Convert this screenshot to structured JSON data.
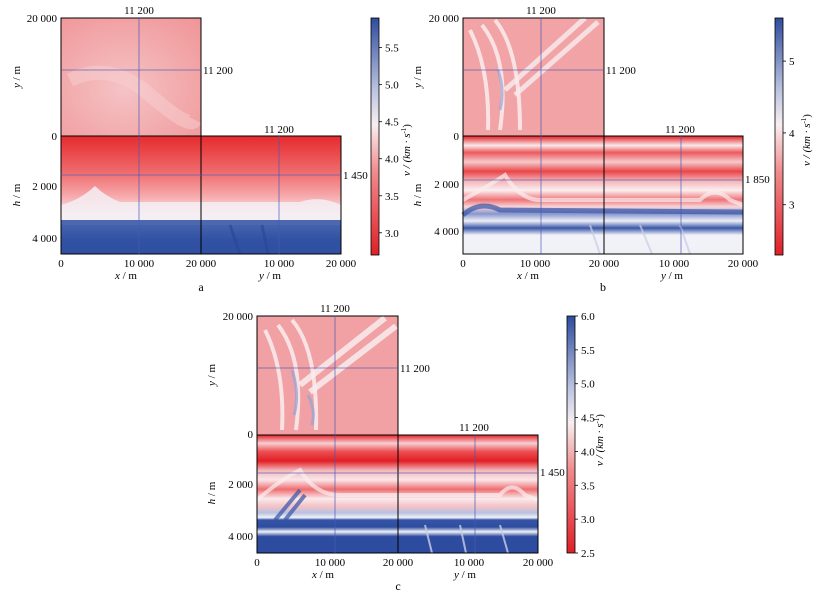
{
  "chart_data": [
    {
      "type": "heatmap",
      "panel": "a",
      "slice_labels": {
        "top_x": "11 200",
        "top_y": "11 200",
        "bottom_y": "11 200",
        "depth": "1 450"
      },
      "x_ticks": [
        "0",
        "10 000",
        "20 000"
      ],
      "y_ticks": [
        "20 000",
        "0"
      ],
      "h_ticks": [
        "2 000",
        "4 000"
      ],
      "y2_ticks": [
        "10 000",
        "20 000"
      ],
      "colorbar_ticks": [
        "5.5",
        "5.0",
        "4.5",
        "4.0",
        "3.5",
        "3.0"
      ],
      "colorbar_range": [
        2.7,
        5.9
      ],
      "interface_depth_m": 2700
    },
    {
      "type": "heatmap",
      "panel": "b",
      "slice_labels": {
        "top_x": "11 200",
        "top_y": "11 200",
        "bottom_y": "11 200",
        "depth": "1 850"
      },
      "x_ticks": [
        "0",
        "10 000",
        "20 000"
      ],
      "y_ticks": [
        "20 000",
        "0"
      ],
      "h_ticks": [
        "2 000",
        "4 000"
      ],
      "y2_ticks": [
        "10 000",
        "20 000"
      ],
      "colorbar_ticks": [
        "5",
        "4",
        "3"
      ],
      "colorbar_range": [
        2.3,
        5.6
      ]
    },
    {
      "type": "heatmap",
      "panel": "c",
      "slice_labels": {
        "top_x": "11 200",
        "top_y": "11 200",
        "bottom_y": "11 200",
        "depth": "1 450"
      },
      "x_ticks": [
        "0",
        "10 000",
        "20 000"
      ],
      "y_ticks": [
        "20 000",
        "0"
      ],
      "h_ticks": [
        "2 000",
        "4 000"
      ],
      "y2_ticks": [
        "10 000",
        "20 000"
      ],
      "colorbar_ticks": [
        "6.0",
        "5.5",
        "5.0",
        "4.5",
        "4.0",
        "3.5",
        "3.0",
        "2.5"
      ],
      "colorbar_range": [
        2.5,
        6.0
      ]
    }
  ],
  "labels": {
    "x_label": "x",
    "y_label": "y",
    "h_label": "h",
    "unit_m": " / m",
    "cb_label": "v / (km · s",
    "cb_sup": "-1",
    "cb_close": ")"
  },
  "captions": {
    "a": "a",
    "b": "b",
    "c": "c"
  },
  "colors": {
    "low": "#e8262a",
    "mid": "#f7f2f4",
    "high": "#2f4da0",
    "grid": "#4a57b8"
  }
}
